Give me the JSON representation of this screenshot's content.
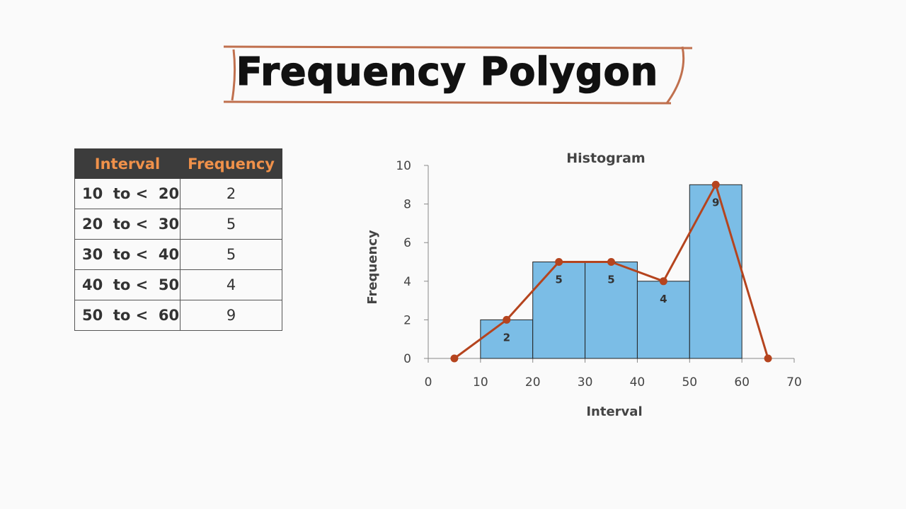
{
  "header": {
    "title": "Frequency Polygon"
  },
  "table": {
    "headers": [
      "Interval",
      "Frequency"
    ],
    "rows": [
      {
        "interval": "10  to <  20",
        "frequency": "2"
      },
      {
        "interval": "20  to <  30",
        "frequency": "5"
      },
      {
        "interval": "30  to <  40",
        "frequency": "5"
      },
      {
        "interval": "40  to <  50",
        "frequency": "4"
      },
      {
        "interval": "50  to <  60",
        "frequency": "9"
      }
    ]
  },
  "colors": {
    "bar": "#7bbde6",
    "polygon": "#b5441e",
    "frame": "#c0704e",
    "header_bg": "#3c3c3c",
    "header_text": "#f0914a"
  },
  "chart_data": {
    "type": "bar",
    "title": "Histogram",
    "xlabel": "Interval",
    "ylabel": "Frequency",
    "xlim": [
      0,
      70
    ],
    "ylim": [
      0,
      10
    ],
    "x_ticks": [
      "0",
      "10",
      "20",
      "30",
      "40",
      "50",
      "60",
      "70"
    ],
    "y_ticks": [
      "0",
      "2",
      "4",
      "6",
      "8",
      "10"
    ],
    "bins": [
      {
        "start": 10,
        "end": 20,
        "value": 2,
        "label": "2"
      },
      {
        "start": 20,
        "end": 30,
        "value": 5,
        "label": "5"
      },
      {
        "start": 30,
        "end": 40,
        "value": 5,
        "label": "5"
      },
      {
        "start": 40,
        "end": 50,
        "value": 4,
        "label": "4"
      },
      {
        "start": 50,
        "end": 60,
        "value": 9,
        "label": "9"
      }
    ],
    "polygon": {
      "x": [
        5,
        15,
        25,
        35,
        45,
        55,
        65
      ],
      "y": [
        0,
        2,
        5,
        5,
        4,
        9,
        0
      ]
    }
  }
}
